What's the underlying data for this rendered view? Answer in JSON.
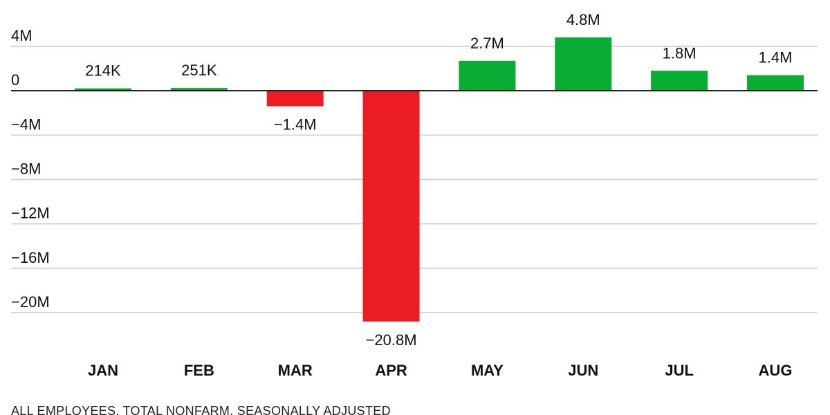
{
  "chart_data": {
    "type": "bar",
    "title": "",
    "xlabel": "",
    "ylabel": "",
    "categories": [
      "JAN",
      "FEB",
      "MAR",
      "APR",
      "MAY",
      "JUN",
      "JUL",
      "AUG"
    ],
    "values": [
      214000,
      251000,
      -1400000,
      -20800000,
      2700000,
      4800000,
      1800000,
      1400000
    ],
    "value_labels": [
      "214K",
      "251K",
      "−1.4M",
      "−20.8M",
      "2.7M",
      "4.8M",
      "1.8M",
      "1.4M"
    ],
    "ylim": [
      -22000000,
      6000000
    ],
    "yticks": [
      4000000,
      0,
      -4000000,
      -8000000,
      -12000000,
      -16000000,
      -20000000
    ],
    "ytick_labels": [
      "4M",
      "0",
      "−4M",
      "−8M",
      "−12M",
      "−16M",
      "−20M"
    ],
    "grid": true,
    "legend": "none",
    "colors": {
      "positive": "#0aad34",
      "negative": "#ec1c24",
      "zero_line": "#111111",
      "grid": "#cccccc"
    },
    "footnote": "ALL EMPLOYEES, TOTAL NONFARM, SEASONALLY ADJUSTED"
  }
}
